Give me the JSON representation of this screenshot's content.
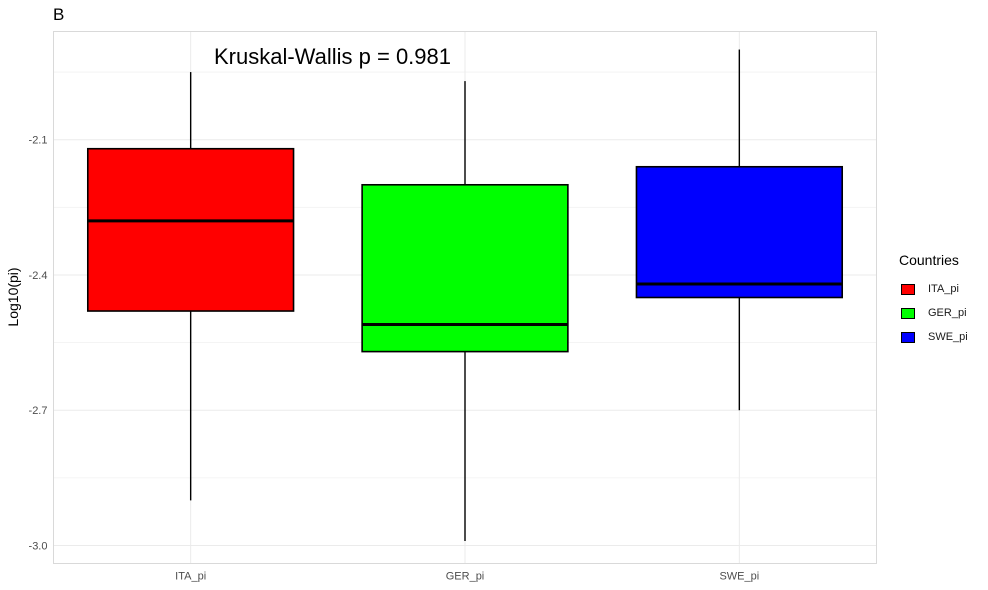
{
  "panel_tag": "B",
  "chart_data": {
    "type": "boxplot",
    "title": "",
    "xlabel": "",
    "ylabel": "Log10(pi)",
    "annotation": "Kruskal-Wallis p = 0.981",
    "ylim": [
      -3.04,
      -1.86
    ],
    "yticks": [
      -2.1,
      -2.4,
      -2.7,
      -3.0
    ],
    "ytick_labels": [
      "-2.1",
      "-2.4",
      "-2.7",
      "-3.0"
    ],
    "grid": true,
    "legend_position": "right",
    "legend_title": "Countries",
    "categories": [
      "ITA_pi",
      "GER_pi",
      "SWE_pi"
    ],
    "series": [
      {
        "name": "ITA_pi",
        "color": "#ff0000",
        "min": -2.9,
        "q1": -2.48,
        "median": -2.28,
        "q3": -2.12,
        "max": -1.95
      },
      {
        "name": "GER_pi",
        "color": "#00ff00",
        "min": -2.99,
        "q1": -2.57,
        "median": -2.51,
        "q3": -2.2,
        "max": -1.97
      },
      {
        "name": "SWE_pi",
        "color": "#0000ff",
        "min": -2.7,
        "q1": -2.45,
        "median": -2.42,
        "q3": -2.16,
        "max": -1.9
      }
    ]
  }
}
